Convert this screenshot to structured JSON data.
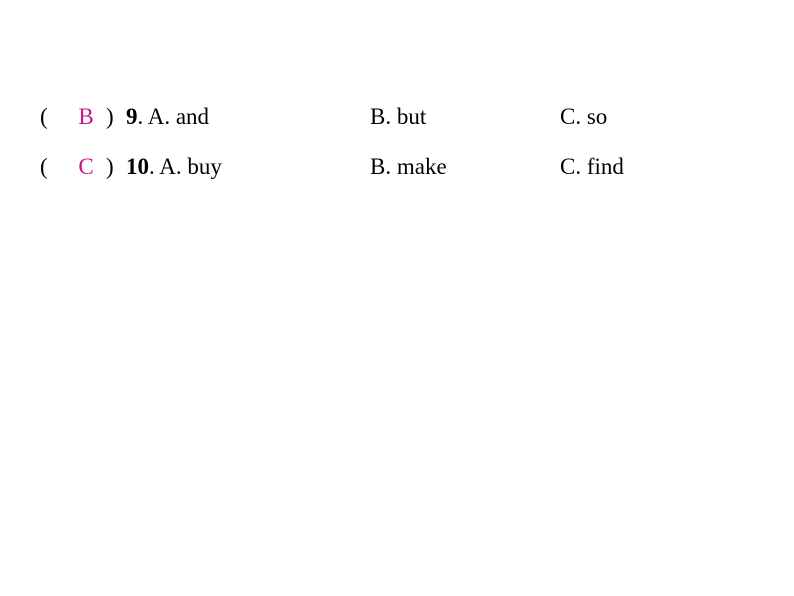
{
  "colors": {
    "text": "#000000",
    "answer": "#c71585",
    "background": "#ffffff"
  },
  "typography": {
    "fontFamily": "Georgia, Times New Roman, serif",
    "fontSize": 23
  },
  "paren": {
    "open": "(",
    "close": ")"
  },
  "questions": [
    {
      "answer": "B",
      "number": "9",
      "optionA": ". A. and",
      "optionB": "B. but",
      "optionC": "C. so"
    },
    {
      "answer": "C",
      "number": "10",
      "optionA": ". A. buy",
      "optionB": "B. make",
      "optionC": "C. find"
    }
  ]
}
